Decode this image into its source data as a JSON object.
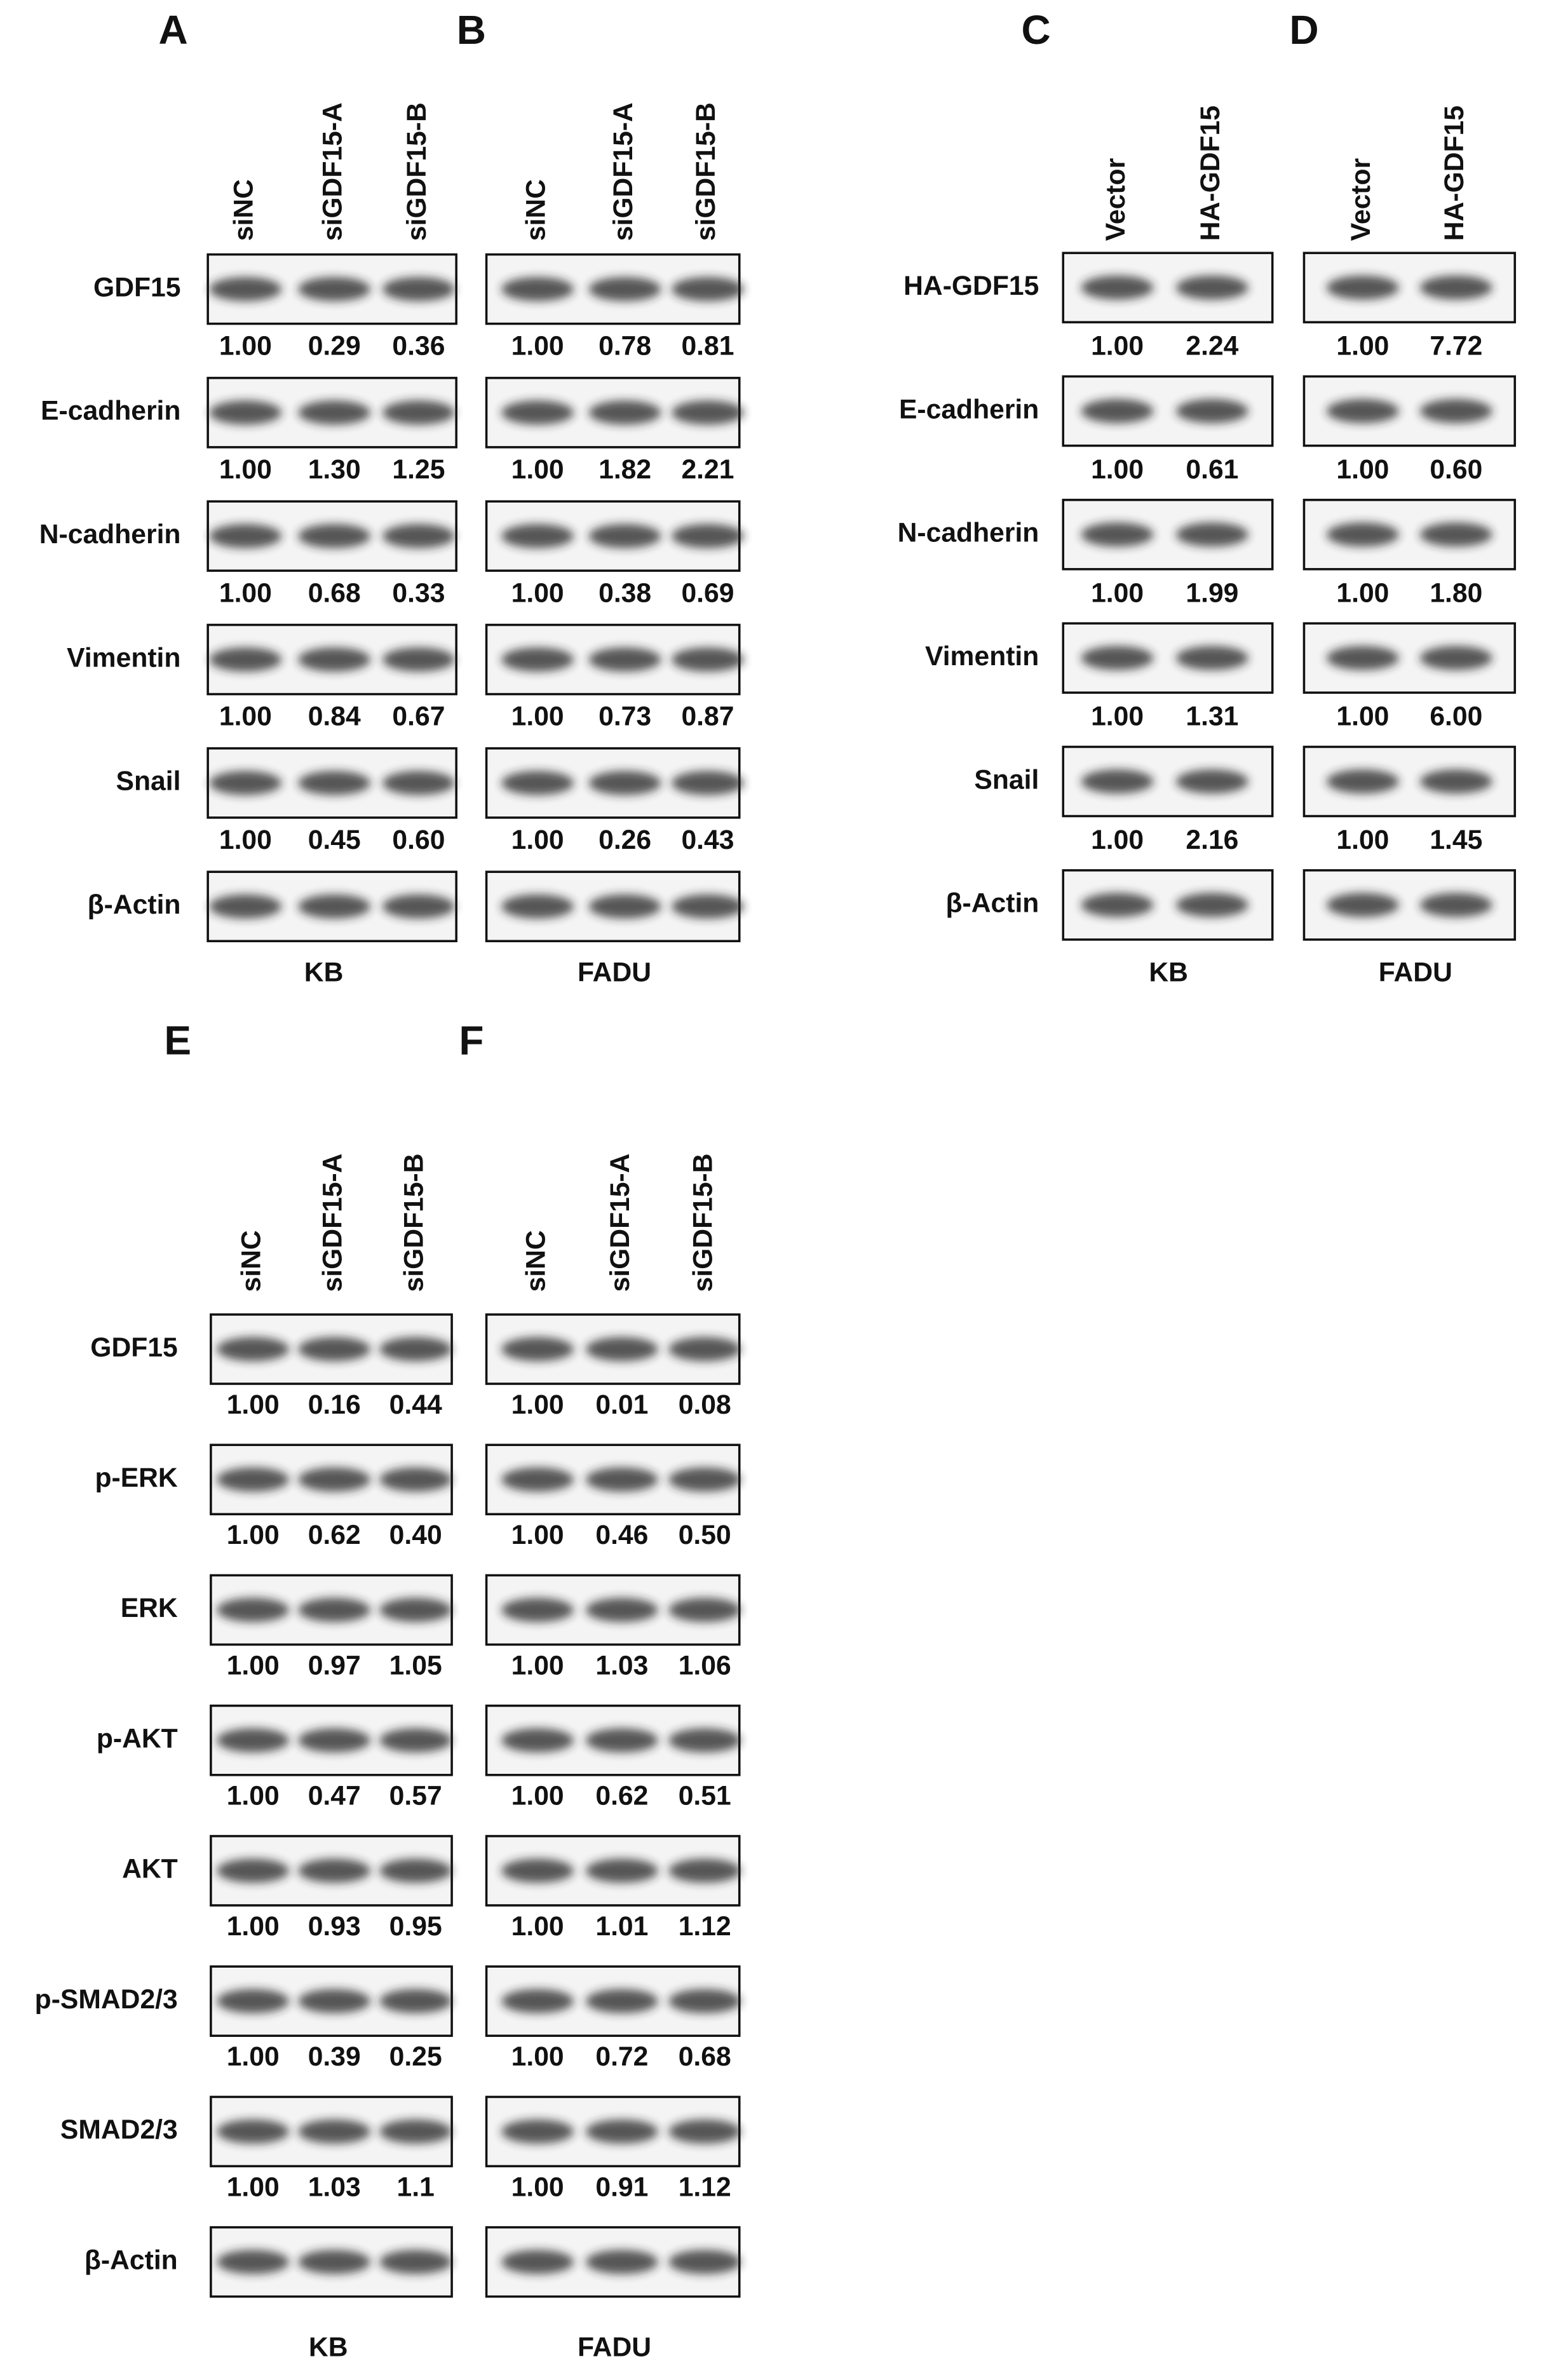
{
  "figure": {
    "groups": [
      {
        "row_labels": [
          "GDF15",
          "E-cadherin",
          "N-cadherin",
          "Vimentin",
          "Snail",
          "β-Actin"
        ],
        "panels": [
          {
            "letter": "A",
            "cell_line": "KB",
            "lanes": [
              "siNC",
              "siGDF15-A",
              "siGDF15-B"
            ],
            "quantification": [
              [
                "1.00",
                "0.29",
                "0.36"
              ],
              [
                "1.00",
                "1.30",
                "1.25"
              ],
              [
                "1.00",
                "0.68",
                "0.33"
              ],
              [
                "1.00",
                "0.84",
                "0.67"
              ],
              [
                "1.00",
                "0.45",
                "0.60"
              ]
            ]
          },
          {
            "letter": "B",
            "cell_line": "FADU",
            "lanes": [
              "siNC",
              "siGDF15-A",
              "siGDF15-B"
            ],
            "quantification": [
              [
                "1.00",
                "0.78",
                "0.81"
              ],
              [
                "1.00",
                "1.82",
                "2.21"
              ],
              [
                "1.00",
                "0.38",
                "0.69"
              ],
              [
                "1.00",
                "0.73",
                "0.87"
              ],
              [
                "1.00",
                "0.26",
                "0.43"
              ]
            ]
          }
        ]
      },
      {
        "row_labels": [
          "HA-GDF15",
          "E-cadherin",
          "N-cadherin",
          "Vimentin",
          "Snail",
          "β-Actin"
        ],
        "panels": [
          {
            "letter": "C",
            "cell_line": "KB",
            "lanes": [
              "Vector",
              "HA-GDF15"
            ],
            "quantification": [
              [
                "1.00",
                "2.24"
              ],
              [
                "1.00",
                "0.61"
              ],
              [
                "1.00",
                "1.99"
              ],
              [
                "1.00",
                "1.31"
              ],
              [
                "1.00",
                "2.16"
              ]
            ]
          },
          {
            "letter": "D",
            "cell_line": "FADU",
            "lanes": [
              "Vector",
              "HA-GDF15"
            ],
            "quantification": [
              [
                "1.00",
                "7.72"
              ],
              [
                "1.00",
                "0.60"
              ],
              [
                "1.00",
                "1.80"
              ],
              [
                "1.00",
                "6.00"
              ],
              [
                "1.00",
                "1.45"
              ]
            ]
          }
        ]
      },
      {
        "row_labels": [
          "GDF15",
          "p-ERK",
          "ERK",
          "p-AKT",
          "AKT",
          "p-SMAD2/3",
          "SMAD2/3",
          "β-Actin"
        ],
        "panels": [
          {
            "letter": "E",
            "cell_line": "KB",
            "lanes": [
              "siNC",
              "siGDF15-A",
              "siGDF15-B"
            ],
            "quantification": [
              [
                "1.00",
                "0.16",
                "0.44"
              ],
              [
                "1.00",
                "0.62",
                "0.40"
              ],
              [
                "1.00",
                "0.97",
                "1.05"
              ],
              [
                "1.00",
                "0.47",
                "0.57"
              ],
              [
                "1.00",
                "0.93",
                "0.95"
              ],
              [
                "1.00",
                "0.39",
                "0.25"
              ],
              [
                "1.00",
                "1.03",
                "1.1"
              ]
            ]
          },
          {
            "letter": "F",
            "cell_line": "FADU",
            "lanes": [
              "siNC",
              "siGDF15-A",
              "siGDF15-B"
            ],
            "quantification": [
              [
                "1.00",
                "0.01",
                "0.08"
              ],
              [
                "1.00",
                "0.46",
                "0.50"
              ],
              [
                "1.00",
                "1.03",
                "1.06"
              ],
              [
                "1.00",
                "0.62",
                "0.51"
              ],
              [
                "1.00",
                "1.01",
                "1.12"
              ],
              [
                "1.00",
                "0.72",
                "0.68"
              ],
              [
                "1.00",
                "0.91",
                "1.12"
              ]
            ]
          }
        ]
      }
    ]
  }
}
